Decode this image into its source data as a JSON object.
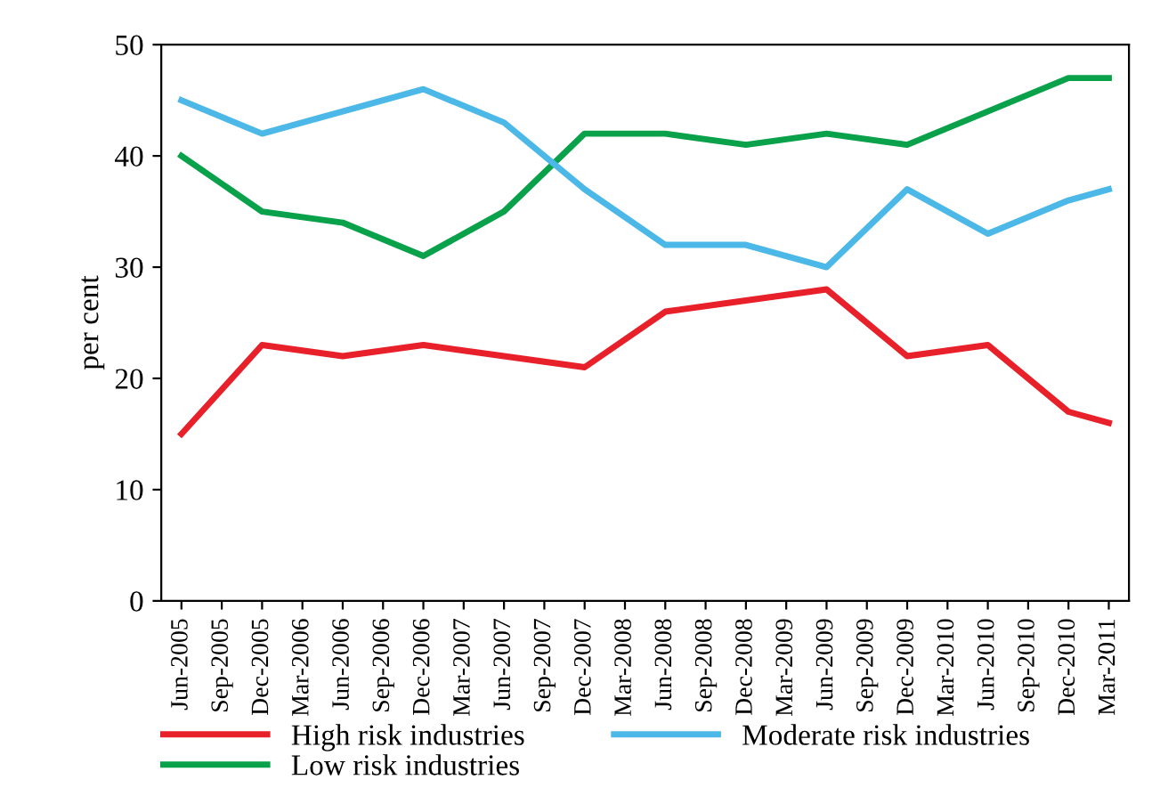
{
  "chart_data": {
    "type": "line",
    "ylabel": "per cent",
    "categories": [
      "Jun-2005",
      "Sep-2005",
      "Dec-2005",
      "Mar-2006",
      "Jun-2006",
      "Sep-2006",
      "Dec-2006",
      "Mar-2007",
      "Jun-2007",
      "Sep-2007",
      "Dec-2007",
      "Mar-2008",
      "Jun-2008",
      "Sep-2008",
      "Dec-2008",
      "Mar-2009",
      "Jun-2009",
      "Sep-2009",
      "Dec-2009",
      "Mar-2010",
      "Jun-2010",
      "Sep-2010",
      "Dec-2010",
      "Mar-2011"
    ],
    "series": [
      {
        "name": "High risk industries",
        "color": "#e8202a",
        "values": [
          15,
          null,
          23,
          null,
          22,
          null,
          23,
          null,
          22,
          null,
          21,
          null,
          26,
          null,
          27,
          null,
          28,
          null,
          22,
          null,
          23,
          null,
          17,
          16
        ]
      },
      {
        "name": "Low risk industries",
        "color": "#0aa14b",
        "values": [
          40,
          null,
          35,
          null,
          34,
          null,
          31,
          null,
          35,
          null,
          42,
          null,
          42,
          null,
          41,
          null,
          42,
          null,
          41,
          null,
          44,
          null,
          47,
          47
        ]
      },
      {
        "name": "Moderate risk industries",
        "color": "#4cb8e8",
        "values": [
          45,
          null,
          42,
          null,
          44,
          null,
          46,
          null,
          43,
          null,
          37,
          null,
          32,
          null,
          32,
          null,
          30,
          null,
          37,
          null,
          33,
          null,
          36,
          37
        ]
      }
    ],
    "ylim": [
      0,
      50
    ],
    "yticks": [
      0,
      10,
      20,
      30,
      40,
      50
    ],
    "grid": false,
    "legend": "bottom",
    "marker": "none",
    "line_style": "solid"
  }
}
